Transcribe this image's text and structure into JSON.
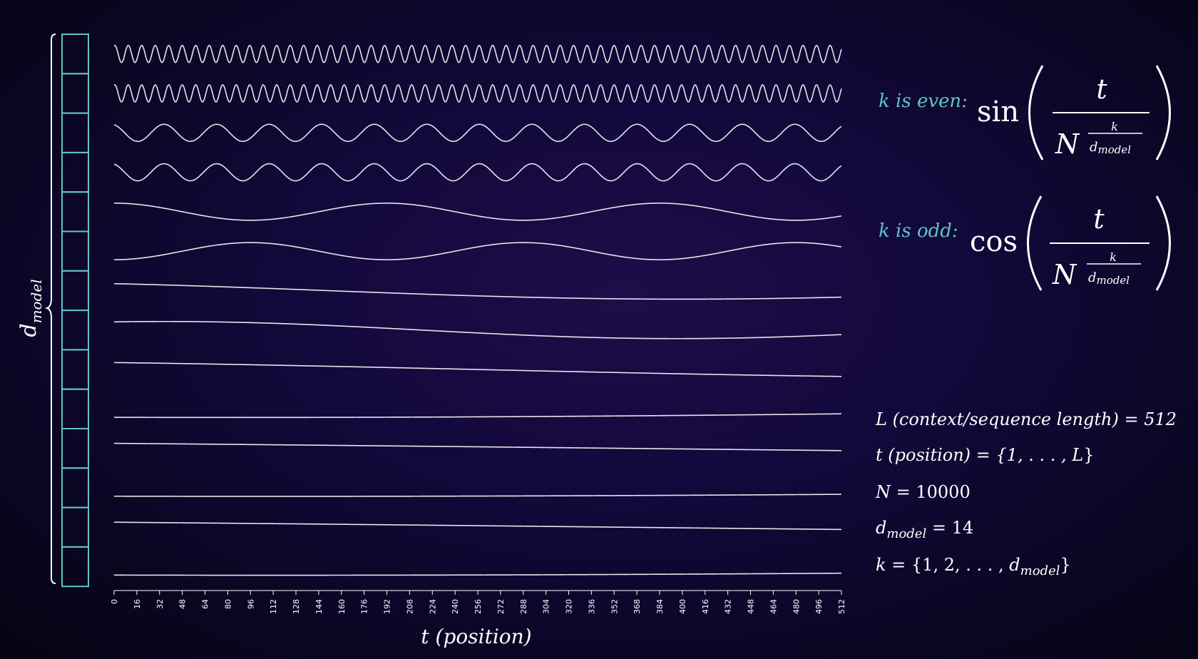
{
  "chart_data": {
    "type": "line",
    "title": "",
    "xlabel": "t (position)",
    "ylabel": "d_model",
    "x_ticks": [
      0,
      16,
      32,
      48,
      64,
      80,
      96,
      112,
      128,
      144,
      160,
      176,
      192,
      208,
      224,
      240,
      256,
      272,
      288,
      304,
      320,
      336,
      352,
      368,
      384,
      400,
      416,
      432,
      448,
      464,
      480,
      496,
      512
    ],
    "xlim": [
      0,
      512
    ],
    "d_model": 14,
    "N": 10000,
    "L": 512,
    "series_count": 14,
    "series_description": "dimension k: even k uses sin(t / N^(k/d_model)), odd k uses cos(t / N^(k/d_model))",
    "line_color": "#e6e6ea",
    "vector_color": "#5fc4c4"
  },
  "axis": {
    "xlabel_t": "t",
    "xlabel_rest": " (position)",
    "ylabel_main": "d",
    "ylabel_sub": "model"
  },
  "formulas": {
    "even_label": "k is even:",
    "even_func": "sin",
    "odd_label": "k is odd:",
    "odd_func": "cos",
    "numerator": "t",
    "base": "N",
    "exp_num": "k",
    "exp_den_main": "d",
    "exp_den_sub": "model"
  },
  "params": {
    "L_line_a": "L",
    "L_line_b": " (context/sequence length) = 512",
    "t_line_a": "t",
    "t_line_b": " (position) = {1, . . . , ",
    "t_line_c": "L",
    "t_line_d": "}",
    "N_line_a": "N",
    "N_line_b": " = 10000",
    "d_line_a": "d",
    "d_line_sub": "model",
    "d_line_b": " = 14",
    "k_line_a": "k",
    "k_line_b": " = {1, 2, . . . , ",
    "k_line_c": "d",
    "k_line_sub": "model",
    "k_line_d": "}"
  }
}
